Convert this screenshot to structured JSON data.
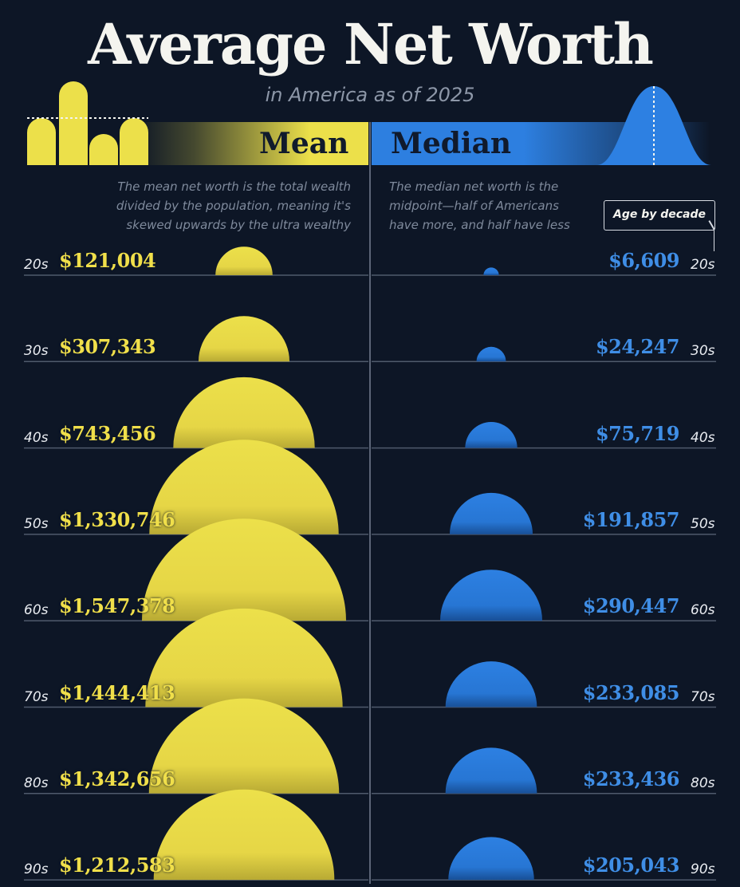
{
  "title": "Average Net Worth",
  "subtitle": "in America as of 2025",
  "mean": {
    "label": "Mean",
    "description": "The mean net worth is the total wealth divided by the population, meaning it's skewed upwards by the ultra wealthy",
    "color": "#ece04a"
  },
  "median": {
    "label": "Median",
    "description": "The median net worth is the midpoint—half of Americans have more, and half have less",
    "color": "#2d7fe0"
  },
  "age_label": "Age by decade",
  "chart_data": {
    "type": "bar",
    "categories": [
      "20s",
      "30s",
      "40s",
      "50s",
      "60s",
      "70s",
      "80s",
      "90s"
    ],
    "series": [
      {
        "name": "Mean",
        "values": [
          121004,
          307343,
          743456,
          1330746,
          1547378,
          1444413,
          1342656,
          1212583
        ],
        "labels": [
          "$121,004",
          "$307,343",
          "$743,456",
          "$1,330,746",
          "$1,547,378",
          "$1,444,413",
          "$1,342,656",
          "$1,212,583"
        ]
      },
      {
        "name": "Median",
        "values": [
          6609,
          24247,
          75719,
          191857,
          290447,
          233085,
          233436,
          205043
        ],
        "labels": [
          "$6,609",
          "$24,247",
          "$75,719",
          "$191,857",
          "$290,447",
          "$233,085",
          "$233,436",
          "$205,043"
        ]
      }
    ],
    "title": "Average Net Worth",
    "subtitle": "in America as of 2025",
    "legend": "top"
  }
}
